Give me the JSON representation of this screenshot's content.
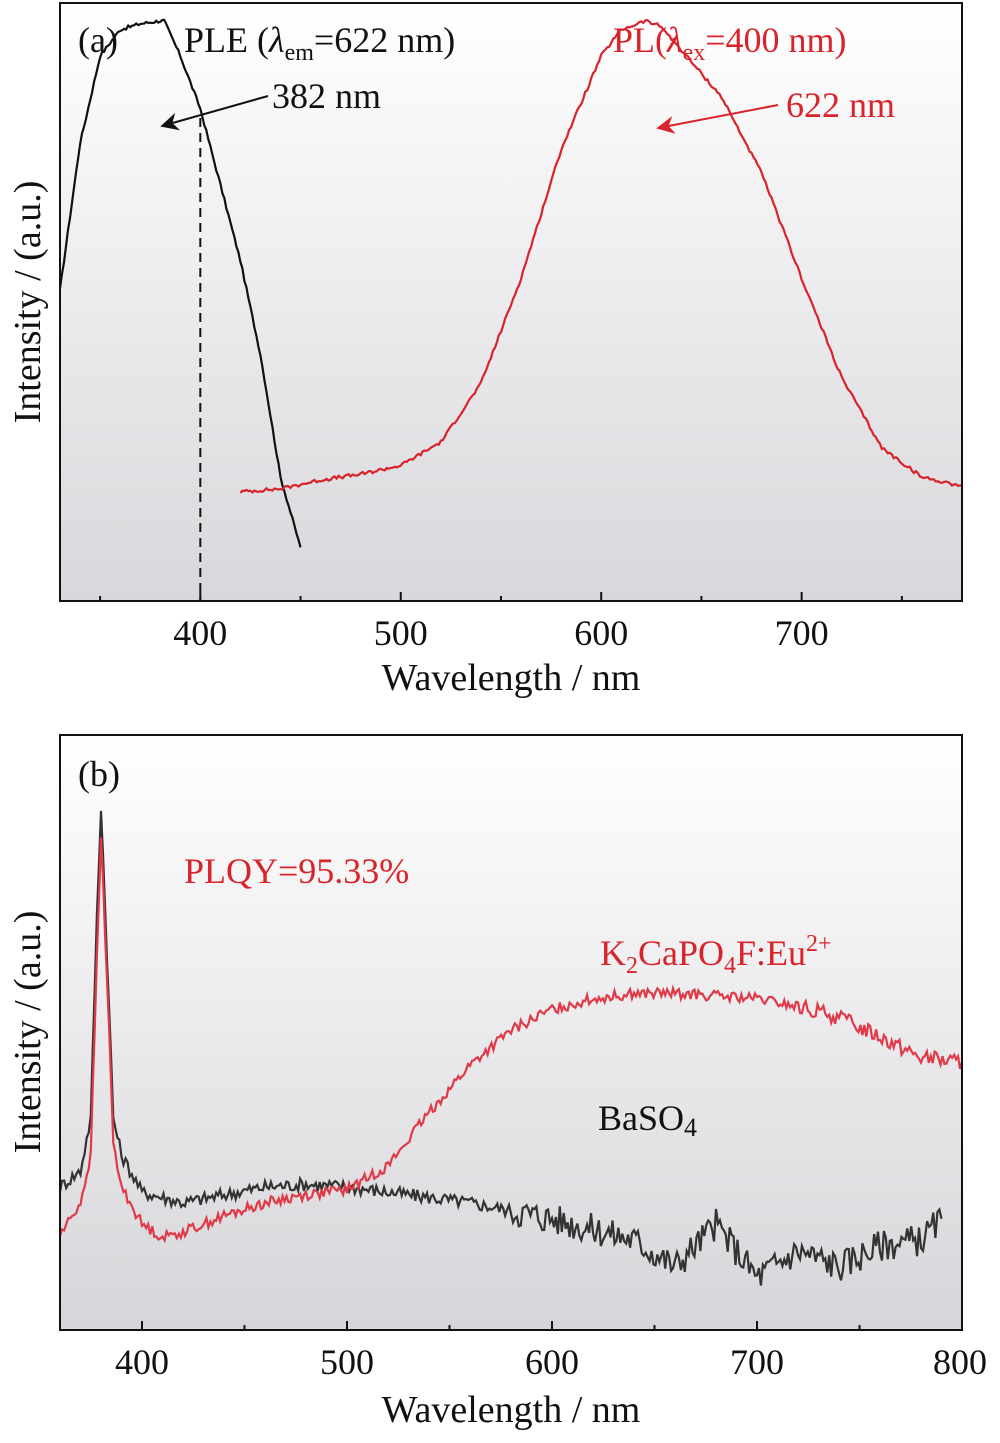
{
  "chart_data": [
    {
      "type": "line",
      "panel_label": "(a)",
      "xlabel": "Wavelength / nm",
      "ylabel": "Intensity / (a.u.)",
      "xlim": [
        330,
        780
      ],
      "ylim": [
        0,
        1.0
      ],
      "x_ticks": [
        400,
        500,
        600,
        700
      ],
      "y_ticks_shown": false,
      "background": "vertical white-to-gray gradient",
      "series": [
        {
          "name": "PLE (λem=622 nm)",
          "color": "#111111",
          "x": [
            330,
            340,
            350,
            360,
            370,
            380,
            382,
            390,
            400,
            410,
            420,
            430,
            440,
            450
          ],
          "y": [
            0.53,
            0.78,
            0.93,
            0.975,
            0.985,
            0.99,
            0.99,
            0.93,
            0.84,
            0.71,
            0.58,
            0.42,
            0.21,
            0.09
          ]
        },
        {
          "name": "PL(λex=400 nm)",
          "color": "#d9232a",
          "x": [
            420,
            440,
            460,
            480,
            500,
            520,
            540,
            560,
            580,
            600,
            610,
            622,
            630,
            640,
            660,
            680,
            700,
            720,
            740,
            760,
            780
          ],
          "y": [
            0.185,
            0.19,
            0.205,
            0.215,
            0.23,
            0.27,
            0.37,
            0.55,
            0.77,
            0.93,
            0.975,
            0.99,
            0.98,
            0.94,
            0.86,
            0.73,
            0.55,
            0.38,
            0.26,
            0.21,
            0.195
          ]
        }
      ],
      "marker_line_x": 400,
      "annotations": [
        {
          "text": "PLE (",
          "sym": "λ",
          "sub": "em",
          "tail": "=622 nm)",
          "color": "#111111"
        },
        {
          "text": "PL(",
          "sym": "λ",
          "sub": "ex",
          "tail": "=400 nm)",
          "color": "#d9232a"
        },
        {
          "text": "382 nm",
          "color": "#111111",
          "arrow_to_x": 382
        },
        {
          "text": "622 nm",
          "color": "#d9232a",
          "arrow_to_x": 622
        }
      ]
    },
    {
      "type": "line",
      "panel_label": "(b)",
      "xlabel": "Wavelength / nm",
      "ylabel": "Intensity / (a.u.)",
      "xlim": [
        360,
        800
      ],
      "ylim": [
        0,
        1.0
      ],
      "x_ticks": [
        400,
        500,
        600,
        700,
        800
      ],
      "y_ticks_shown": false,
      "background": "vertical white-to-gray gradient",
      "series": [
        {
          "name": "BaSO₄",
          "color": "#333333",
          "x": [
            360,
            370,
            375,
            378,
            380,
            383,
            386,
            390,
            400,
            420,
            440,
            460,
            480,
            500,
            520,
            540,
            560,
            580,
            600,
            620,
            640,
            660,
            680,
            700,
            720,
            740,
            760,
            780,
            790
          ],
          "y": [
            0.27,
            0.3,
            0.4,
            0.78,
            0.99,
            0.7,
            0.4,
            0.33,
            0.26,
            0.24,
            0.255,
            0.27,
            0.275,
            0.27,
            0.26,
            0.25,
            0.24,
            0.225,
            0.21,
            0.19,
            0.17,
            0.12,
            0.2,
            0.1,
            0.15,
            0.12,
            0.16,
            0.17,
            0.21
          ]
        },
        {
          "name": "K₂CaPO₄F:Eu²⁺",
          "color": "#e03a48",
          "x": [
            360,
            370,
            375,
            378,
            380,
            383,
            386,
            390,
            400,
            410,
            420,
            440,
            460,
            480,
            500,
            520,
            540,
            560,
            580,
            600,
            620,
            640,
            660,
            680,
            700,
            720,
            740,
            760,
            780,
            800
          ],
          "y": [
            0.18,
            0.24,
            0.33,
            0.7,
            0.93,
            0.66,
            0.35,
            0.27,
            0.2,
            0.175,
            0.185,
            0.215,
            0.24,
            0.255,
            0.265,
            0.31,
            0.41,
            0.5,
            0.565,
            0.605,
            0.625,
            0.635,
            0.635,
            0.63,
            0.625,
            0.61,
            0.59,
            0.555,
            0.515,
            0.505
          ]
        }
      ],
      "annotations": [
        {
          "text": "PLQY=95.33%",
          "color": "#d9232a"
        },
        {
          "text": "K",
          "parts": [
            "K",
            "2",
            "CaPO",
            "4",
            "F:Eu",
            "2+"
          ],
          "color": "#d9232a"
        },
        {
          "text": "BaSO",
          "parts": [
            "BaSO",
            "4"
          ],
          "color": "#111111"
        }
      ]
    }
  ]
}
